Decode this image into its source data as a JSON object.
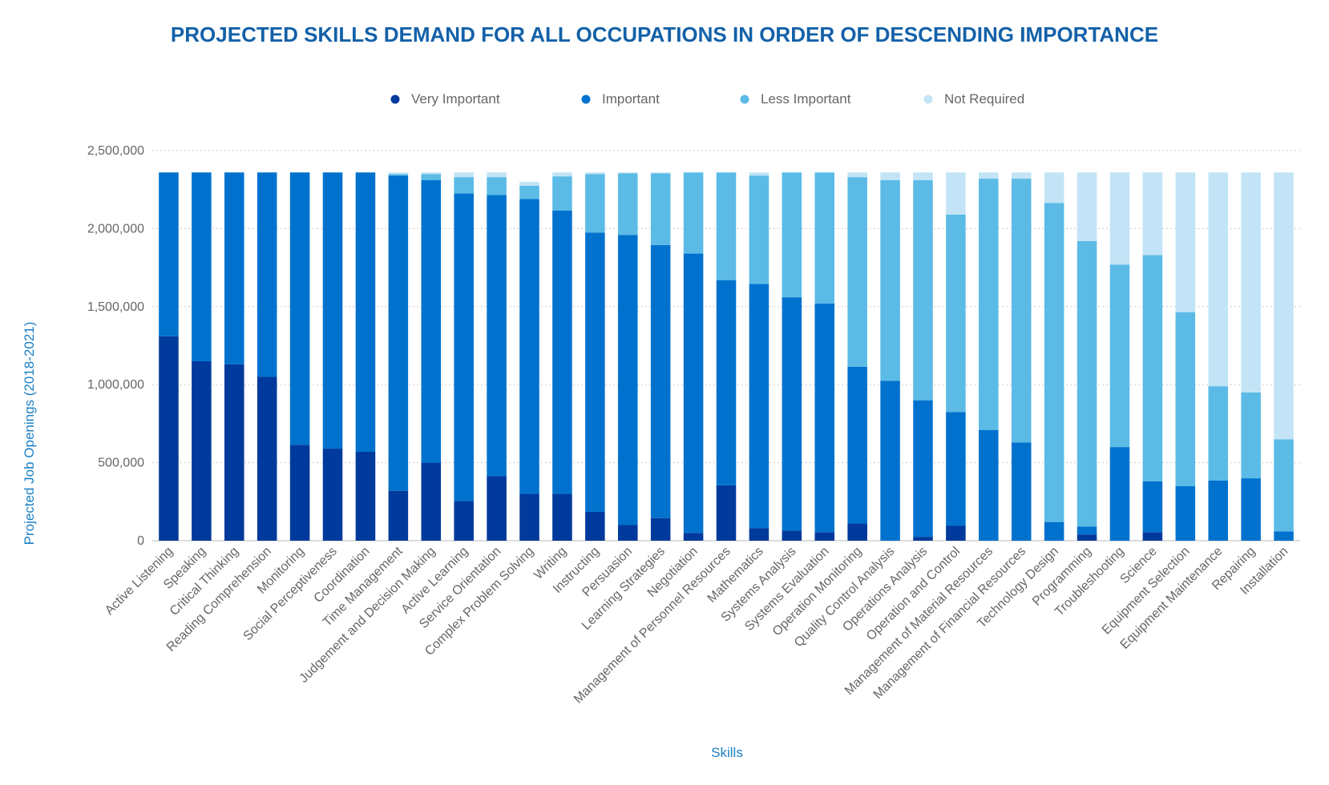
{
  "chart_data": {
    "type": "bar",
    "stacked": true,
    "title": "PROJECTED SKILLS DEMAND FOR ALL OCCUPATIONS IN ORDER OF DESCENDING IMPORTANCE",
    "xlabel": "Skills",
    "ylabel": "Projected Job Openings (2018-2021)",
    "ylim": [
      0,
      2500000
    ],
    "yticks": [
      0,
      500000,
      1000000,
      1500000,
      2000000,
      2500000
    ],
    "ytick_labels": [
      "0",
      "500,000",
      "1,000,000",
      "1,500,000",
      "2,000,000",
      "2,500,000"
    ],
    "grid": true,
    "legend_position": "top",
    "categories": [
      "Active Listening",
      "Speaking",
      "Critical Thinking",
      "Reading Comprehension",
      "Monitoring",
      "Social Perceptiveness",
      "Coordination",
      "Time Management",
      "Judgement and Decision Making",
      "Active Learning",
      "Service Orientation",
      "Complex Problem Solving",
      "Writing",
      "Instructing",
      "Persuasion",
      "Learning Strategies",
      "Negotiation",
      "Management of Personnel Resources",
      "Mathematics",
      "Systems Analysis",
      "Systems Evaluation",
      "Operation Monitoring",
      "Quality Control Analysis",
      "Operations Analysis",
      "Operation and Control",
      "Management of Material Resources",
      "Management of Financial Resources",
      "Technology Design",
      "Programming",
      "Troubleshooting",
      "Science",
      "Equipment Selection",
      "Equipment Maintenance",
      "Repairing",
      "Installation"
    ],
    "series": [
      {
        "name": "Very Important",
        "color": "#003a9c",
        "values": [
          1310000,
          1150000,
          1130000,
          1050000,
          615000,
          590000,
          570000,
          320000,
          500000,
          255000,
          415000,
          300000,
          300000,
          185000,
          100000,
          145000,
          50000,
          355000,
          80000,
          65000,
          55000,
          110000,
          0,
          25000,
          95000,
          0,
          0,
          0,
          40000,
          0,
          55000,
          0,
          0,
          0,
          0
        ]
      },
      {
        "name": "Important",
        "color": "#0072ce",
        "values": [
          1050000,
          1210000,
          1230000,
          1310000,
          1745000,
          1770000,
          1790000,
          2020000,
          1810000,
          1970000,
          1800000,
          1890000,
          1815000,
          1790000,
          1860000,
          1750000,
          1790000,
          1315000,
          1565000,
          1495000,
          1465000,
          1005000,
          1025000,
          875000,
          730000,
          710000,
          630000,
          120000,
          50000,
          600000,
          325000,
          350000,
          385000,
          400000,
          60000
        ]
      },
      {
        "name": "Less Important",
        "color": "#5bbbe6",
        "values": [
          0,
          0,
          0,
          0,
          0,
          0,
          0,
          10000,
          40000,
          105000,
          115000,
          85000,
          220000,
          375000,
          395000,
          460000,
          520000,
          690000,
          695000,
          800000,
          840000,
          1215000,
          1285000,
          1410000,
          1265000,
          1610000,
          1690000,
          2045000,
          1830000,
          1170000,
          1450000,
          1115000,
          605000,
          550000,
          590000
        ]
      },
      {
        "name": "Not Required",
        "color": "#c2e4f6",
        "values": [
          0,
          0,
          0,
          0,
          0,
          0,
          0,
          10000,
          10000,
          30000,
          30000,
          25000,
          25000,
          10000,
          5000,
          5000,
          0,
          0,
          20000,
          0,
          0,
          30000,
          50000,
          50000,
          270000,
          40000,
          40000,
          195000,
          440000,
          590000,
          530000,
          895000,
          1370000,
          1410000,
          1710000
        ]
      }
    ]
  },
  "colors": {
    "title": "#1361a8",
    "axis_title": "#1a7fc4",
    "grid": "#cccccc"
  }
}
